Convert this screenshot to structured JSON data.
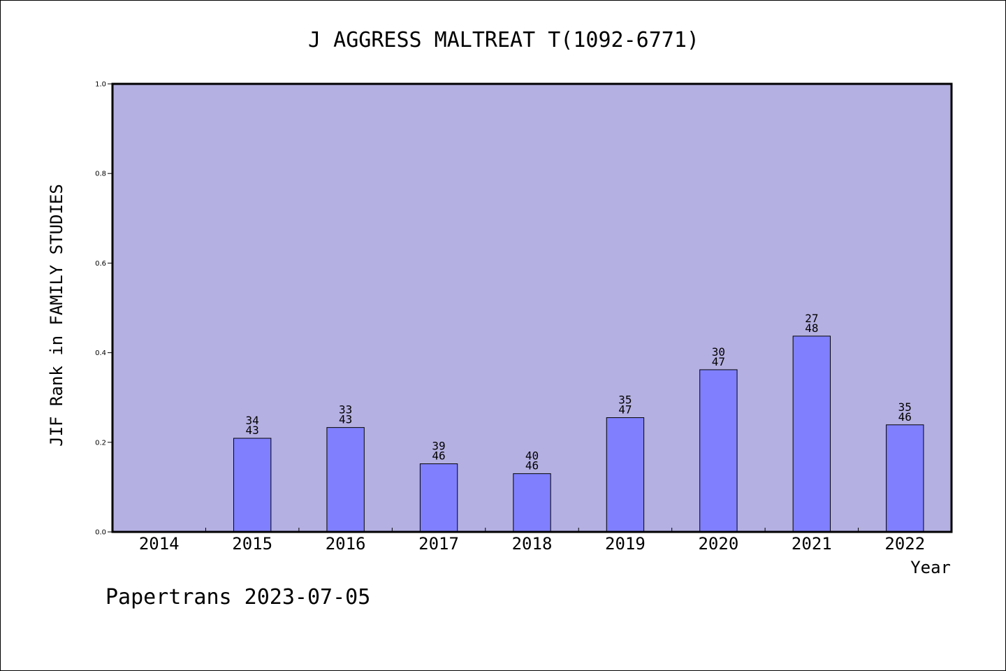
{
  "chart_data": {
    "type": "bar",
    "title": "J AGGRESS MALTREAT T(1092-6771)",
    "xlabel": "Year",
    "ylabel": "JIF Rank in FAMILY STUDIES",
    "ylim": [
      0,
      1.0
    ],
    "yticks": [
      "0.0",
      "0.2",
      "0.4",
      "0.6",
      "0.8",
      "1.0"
    ],
    "categories": [
      "2014",
      "2015",
      "2016",
      "2017",
      "2018",
      "2019",
      "2020",
      "2021",
      "2022"
    ],
    "values": [
      null,
      0.209,
      0.233,
      0.152,
      0.13,
      0.255,
      0.362,
      0.437,
      0.239
    ],
    "rank_labels": [
      null,
      [
        "34",
        "43"
      ],
      [
        "33",
        "43"
      ],
      [
        "39",
        "46"
      ],
      [
        "40",
        "46"
      ],
      [
        "35",
        "47"
      ],
      [
        "30",
        "47"
      ],
      [
        "27",
        "48"
      ],
      [
        "35",
        "46"
      ]
    ],
    "grid": false,
    "colors": {
      "plot_background": "#b5b0e2",
      "bar": "#8080ff",
      "bar_edge": "#000000"
    }
  },
  "footer": "Papertrans 2023-07-05"
}
